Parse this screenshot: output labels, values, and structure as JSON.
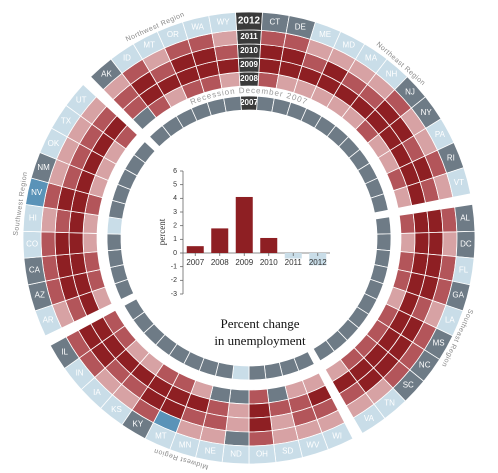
{
  "chart_data": {
    "type": "bar",
    "title": [
      "Percent change",
      "in unemployment"
    ],
    "ylabel": "percent",
    "categories": [
      "2007",
      "2008",
      "2009",
      "2010",
      "2011",
      "2012"
    ],
    "values": [
      0.5,
      1.8,
      4.1,
      1.1,
      -0.4,
      -0.9
    ],
    "colors": [
      "#8e1f23",
      "#8e1f23",
      "#8e1f23",
      "#8e1f23",
      "#c9dde8",
      "#c9dde8"
    ],
    "ylim": [
      -3,
      6
    ],
    "yticks": [
      -3,
      -2,
      -1,
      0,
      1,
      2,
      3,
      4,
      5,
      6
    ]
  },
  "ring": {
    "years": [
      2007,
      2008,
      2009,
      2010,
      2011,
      2012
    ],
    "year_color": "#3a3a3a",
    "recession_label": "Recession December 2007",
    "palette": [
      "#c9dde8",
      "#6e7b86",
      "#d7a2a4",
      "#b3555a",
      "#8e1f23",
      "#5a93b8"
    ],
    "regions": [
      {
        "name": "Northeast Region",
        "states": [
          {
            "name": "CT",
            "levels": [
              1,
              3,
              4,
              4,
              3,
              1
            ]
          },
          {
            "name": "DE",
            "levels": [
              1,
              2,
              4,
              4,
              3,
              1
            ]
          },
          {
            "name": "ME",
            "levels": [
              1,
              2,
              4,
              3,
              2,
              0
            ]
          },
          {
            "name": "MD",
            "levels": [
              1,
              2,
              4,
              4,
              2,
              0
            ]
          },
          {
            "name": "MA",
            "levels": [
              1,
              2,
              4,
              3,
              2,
              0
            ]
          },
          {
            "name": "NH",
            "levels": [
              1,
              2,
              4,
              3,
              2,
              0
            ]
          },
          {
            "name": "NJ",
            "levels": [
              1,
              3,
              4,
              4,
              3,
              1
            ]
          },
          {
            "name": "NY",
            "levels": [
              1,
              2,
              4,
              4,
              2,
              1
            ]
          },
          {
            "name": "PA",
            "levels": [
              1,
              2,
              4,
              3,
              2,
              0
            ]
          },
          {
            "name": "RI",
            "levels": [
              1,
              3,
              4,
              4,
              3,
              1
            ]
          },
          {
            "name": "VT",
            "levels": [
              1,
              2,
              4,
              3,
              2,
              0
            ]
          }
        ]
      },
      {
        "name": "Southeast Region",
        "states": [
          {
            "name": "AL",
            "levels": [
              1,
              3,
              4,
              4,
              3,
              1
            ]
          },
          {
            "name": "DC",
            "levels": [
              1,
              2,
              4,
              4,
              2,
              1
            ]
          },
          {
            "name": "FL",
            "levels": [
              1,
              3,
              4,
              4,
              3,
              0
            ]
          },
          {
            "name": "GA",
            "levels": [
              1,
              3,
              4,
              4,
              3,
              1
            ]
          },
          {
            "name": "LA",
            "levels": [
              1,
              2,
              4,
              3,
              2,
              0
            ]
          },
          {
            "name": "MS",
            "levels": [
              1,
              3,
              4,
              4,
              3,
              1
            ]
          },
          {
            "name": "NC",
            "levels": [
              1,
              3,
              4,
              4,
              3,
              1
            ]
          },
          {
            "name": "SC",
            "levels": [
              1,
              3,
              4,
              4,
              3,
              1
            ]
          },
          {
            "name": "TN",
            "levels": [
              1,
              3,
              4,
              4,
              2,
              0
            ]
          },
          {
            "name": "VA",
            "levels": [
              1,
              2,
              4,
              3,
              2,
              0
            ]
          }
        ]
      },
      {
        "name": "Midwest Region",
        "states": [
          {
            "name": "WI",
            "levels": [
              1,
              2,
              4,
              3,
              2,
              0
            ]
          },
          {
            "name": "WV",
            "levels": [
              1,
              2,
              3,
              3,
              2,
              0
            ]
          },
          {
            "name": "SD",
            "levels": [
              1,
              1,
              3,
              2,
              2,
              0
            ]
          },
          {
            "name": "OH",
            "levels": [
              1,
              3,
              4,
              4,
              3,
              0
            ]
          },
          {
            "name": "ND",
            "levels": [
              0,
              1,
              2,
              2,
              1,
              0
            ]
          },
          {
            "name": "NE",
            "levels": [
              1,
              1,
              3,
              3,
              2,
              0
            ]
          },
          {
            "name": "MN",
            "levels": [
              1,
              2,
              4,
              3,
              2,
              0
            ]
          },
          {
            "name": "MT",
            "levels": [
              1,
              3,
              4,
              4,
              5,
              0
            ]
          },
          {
            "name": "KY",
            "levels": [
              1,
              3,
              4,
              4,
              3,
              1
            ]
          },
          {
            "name": "KS",
            "levels": [
              1,
              2,
              4,
              3,
              2,
              0
            ]
          },
          {
            "name": "IA",
            "levels": [
              1,
              2,
              4,
              3,
              2,
              0
            ]
          },
          {
            "name": "IN",
            "levels": [
              1,
              3,
              4,
              4,
              3,
              0
            ]
          },
          {
            "name": "IL",
            "levels": [
              1,
              3,
              4,
              4,
              3,
              1
            ]
          }
        ]
      },
      {
        "name": "Southwest Region",
        "states": [
          {
            "name": "AR",
            "levels": [
              1,
              2,
              4,
              3,
              2,
              0
            ]
          },
          {
            "name": "AZ",
            "levels": [
              1,
              3,
              4,
              4,
              3,
              1
            ]
          },
          {
            "name": "CA",
            "levels": [
              1,
              3,
              4,
              4,
              3,
              1
            ]
          },
          {
            "name": "CO",
            "levels": [
              1,
              2,
              4,
              4,
              3,
              0
            ]
          },
          {
            "name": "HI",
            "levels": [
              0,
              2,
              4,
              3,
              2,
              0
            ]
          },
          {
            "name": "NV",
            "levels": [
              1,
              3,
              4,
              4,
              3,
              5
            ]
          },
          {
            "name": "NM",
            "levels": [
              1,
              2,
              4,
              3,
              2,
              1
            ]
          },
          {
            "name": "OK",
            "levels": [
              1,
              2,
              4,
              3,
              2,
              0
            ]
          },
          {
            "name": "TX",
            "levels": [
              1,
              2,
              4,
              3,
              2,
              0
            ]
          },
          {
            "name": "UT",
            "levels": [
              1,
              3,
              4,
              3,
              2,
              0
            ]
          }
        ]
      },
      {
        "name": "Northwest Region",
        "states": [
          {
            "name": "AK",
            "levels": [
              1,
              1,
              3,
              3,
              2,
              1
            ]
          },
          {
            "name": "ID",
            "levels": [
              1,
              3,
              4,
              4,
              3,
              0
            ]
          },
          {
            "name": "MT",
            "levels": [
              1,
              2,
              4,
              3,
              2,
              0
            ]
          },
          {
            "name": "OR",
            "levels": [
              1,
              3,
              4,
              4,
              3,
              0
            ]
          },
          {
            "name": "WA",
            "levels": [
              1,
              3,
              4,
              4,
              3,
              0
            ]
          },
          {
            "name": "WY",
            "levels": [
              1,
              2,
              4,
              3,
              2,
              0
            ]
          }
        ]
      }
    ]
  }
}
